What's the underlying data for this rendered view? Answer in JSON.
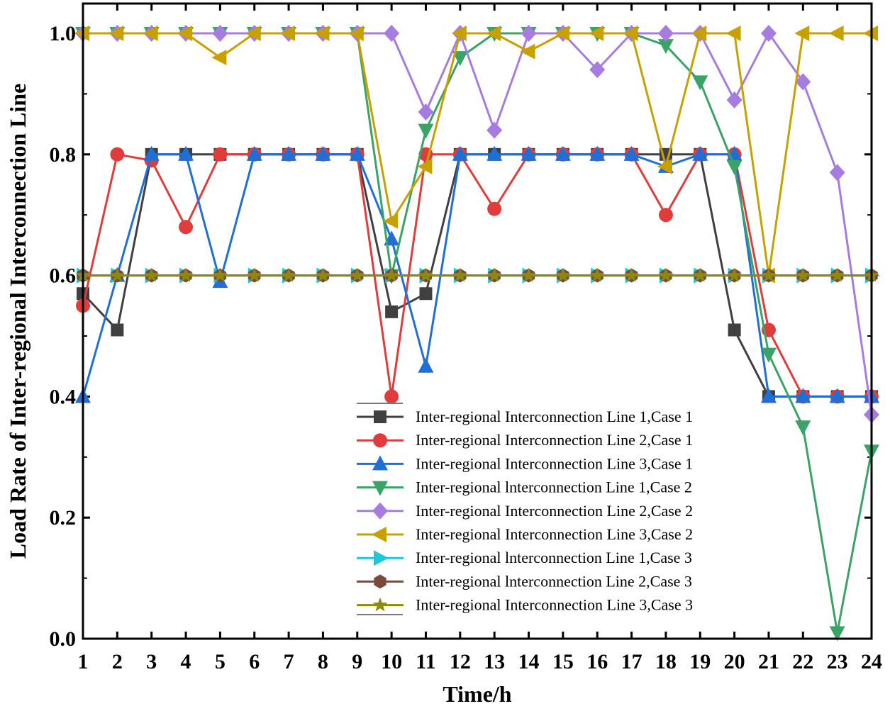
{
  "chart_data": {
    "type": "line",
    "title": "",
    "xlabel": "Time/h",
    "ylabel": "Load Rate of Inter-regional Interconnection Line",
    "xlim": [
      1,
      24
    ],
    "ylim": [
      0,
      1.05
    ],
    "x": [
      1,
      2,
      3,
      4,
      5,
      6,
      7,
      8,
      9,
      10,
      11,
      12,
      13,
      14,
      15,
      16,
      17,
      18,
      19,
      20,
      21,
      22,
      23,
      24
    ],
    "x_ticks": [
      "1",
      "2",
      "3",
      "4",
      "5",
      "6",
      "7",
      "8",
      "9",
      "10",
      "11",
      "12",
      "13",
      "14",
      "15",
      "16",
      "17",
      "18",
      "19",
      "20",
      "21",
      "22",
      "23",
      "24"
    ],
    "y_ticks": [
      "0.0",
      "0.2",
      "0.4",
      "0.6",
      "0.8",
      "1.0"
    ],
    "y_tick_values": [
      0,
      0.2,
      0.4,
      0.6,
      0.8,
      1.0
    ],
    "grid": false,
    "legend_position": "bottom-right",
    "series": [
      {
        "name": "Inter-regional Interconnection Line 1,Case 1",
        "color": "#404040",
        "marker": "square",
        "values": [
          0.57,
          0.51,
          0.8,
          0.8,
          0.8,
          0.8,
          0.8,
          0.8,
          0.8,
          0.54,
          0.57,
          0.8,
          0.8,
          0.8,
          0.8,
          0.8,
          0.8,
          0.8,
          0.8,
          0.51,
          0.4,
          0.4,
          0.4,
          0.4
        ]
      },
      {
        "name": "Inter-regional Interconnection Line 2,Case 1",
        "color": "#e03c3c",
        "marker": "circle",
        "values": [
          0.55,
          0.8,
          0.79,
          0.68,
          0.8,
          0.8,
          0.8,
          0.8,
          0.8,
          0.4,
          0.8,
          0.8,
          0.71,
          0.8,
          0.8,
          0.8,
          0.8,
          0.7,
          0.8,
          0.8,
          0.51,
          0.4,
          0.4,
          0.4
        ]
      },
      {
        "name": "Inter-regional Interconnection Line 3,Case 1",
        "color": "#1f6fd6",
        "marker": "triangle-up",
        "values": [
          0.4,
          0.6,
          0.8,
          0.8,
          0.59,
          0.8,
          0.8,
          0.8,
          0.8,
          0.66,
          0.45,
          0.8,
          0.8,
          0.8,
          0.8,
          0.8,
          0.8,
          0.78,
          0.8,
          0.8,
          0.4,
          0.4,
          0.4,
          0.4
        ]
      },
      {
        "name": "Inter-regional lnterconnection Line 1,Case 2",
        "color": "#3aa366",
        "marker": "triangle-down",
        "values": [
          1.0,
          1.0,
          1.0,
          1.0,
          1.0,
          1.0,
          1.0,
          1.0,
          1.0,
          0.6,
          0.84,
          0.96,
          1.0,
          1.0,
          1.0,
          1.0,
          1.0,
          0.98,
          0.92,
          0.78,
          0.47,
          0.35,
          0.01,
          0.31
        ]
      },
      {
        "name": "Inter-regional Interconnection Line 2,Case 2",
        "color": "#a67ce0",
        "marker": "diamond",
        "values": [
          1.0,
          1.0,
          1.0,
          1.0,
          1.0,
          1.0,
          1.0,
          1.0,
          1.0,
          1.0,
          0.87,
          1.0,
          0.84,
          1.0,
          1.0,
          0.94,
          1.0,
          1.0,
          1.0,
          0.89,
          1.0,
          0.92,
          0.77,
          0.37
        ]
      },
      {
        "name": "Inter-regional Interconnection Line 3,Case 2",
        "color": "#c8a000",
        "marker": "triangle-left",
        "values": [
          1.0,
          1.0,
          1.0,
          1.0,
          0.96,
          1.0,
          1.0,
          1.0,
          1.0,
          0.69,
          0.78,
          1.0,
          1.0,
          0.97,
          1.0,
          1.0,
          1.0,
          0.78,
          1.0,
          1.0,
          0.6,
          1.0,
          1.0,
          1.0
        ]
      },
      {
        "name": "Inter-regional lnterconnection Line 1,Case 3",
        "color": "#1ec8d8",
        "marker": "triangle-right",
        "values": [
          0.6,
          0.6,
          0.6,
          0.6,
          0.6,
          0.6,
          0.6,
          0.6,
          0.6,
          0.6,
          0.6,
          0.6,
          0.6,
          0.6,
          0.6,
          0.6,
          0.6,
          0.6,
          0.6,
          0.6,
          0.6,
          0.6,
          0.6,
          0.6
        ]
      },
      {
        "name": "Inter-regional lnterconnection Line 2,Case 3",
        "color": "#7a4a3a",
        "marker": "hexagon",
        "values": [
          0.6,
          0.6,
          0.6,
          0.6,
          0.6,
          0.6,
          0.6,
          0.6,
          0.6,
          0.6,
          0.6,
          0.6,
          0.6,
          0.6,
          0.6,
          0.6,
          0.6,
          0.6,
          0.6,
          0.6,
          0.6,
          0.6,
          0.6,
          0.6
        ]
      },
      {
        "name": "Inter-regional Interconnection Line 3,Case 3",
        "color": "#8a8a10",
        "marker": "star",
        "values": [
          0.6,
          0.6,
          0.6,
          0.6,
          0.6,
          0.6,
          0.6,
          0.6,
          0.6,
          0.6,
          0.6,
          0.6,
          0.6,
          0.6,
          0.6,
          0.6,
          0.6,
          0.6,
          0.6,
          0.6,
          0.6,
          0.6,
          0.6,
          0.6
        ]
      }
    ]
  }
}
